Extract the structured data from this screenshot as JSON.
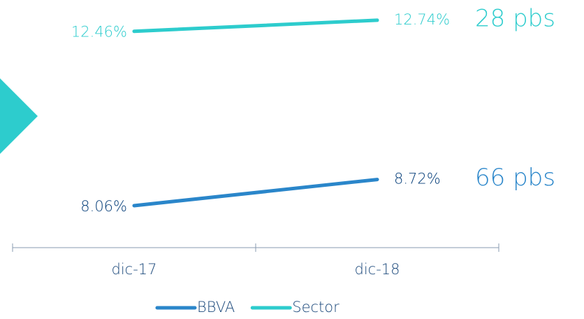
{
  "chart_data": {
    "type": "line",
    "categories": [
      "dic-17",
      "dic-18"
    ],
    "series": [
      {
        "name": "BBVA",
        "color": "#2a86ca",
        "label_color": "#073f7a",
        "values": [
          8.06,
          8.72
        ],
        "value_labels": [
          "8.06%",
          "8.72%"
        ]
      },
      {
        "name": "Sector",
        "color": "#2dcccd",
        "label_color": "#2dcccd",
        "values": [
          12.46,
          12.74
        ],
        "value_labels": [
          "12.46%",
          "12.74%"
        ]
      }
    ],
    "annotations": [
      {
        "text": "66 pbs",
        "series": 0
      },
      {
        "text": "28 pbs",
        "series": 1
      }
    ],
    "ylim": [
      7,
      13.25
    ]
  }
}
